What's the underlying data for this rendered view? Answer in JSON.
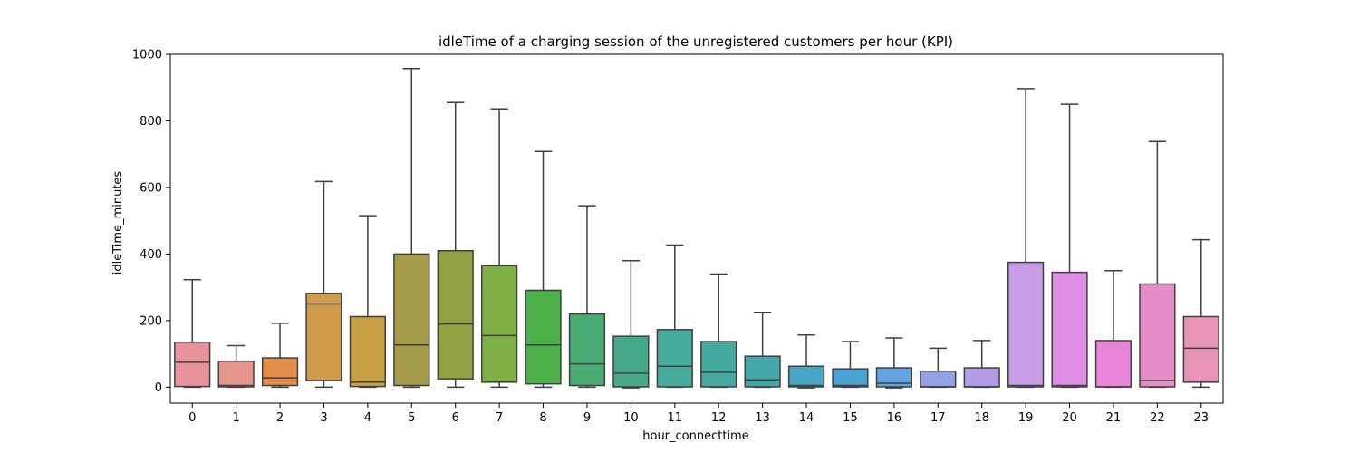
{
  "chart_data": {
    "type": "boxplot",
    "title": "idleTime of a charging session of the unregistered customers per hour (KPI)",
    "xlabel": "hour_connecttime",
    "ylabel": "idleTime_minutes",
    "ylim": [
      -48,
      1000
    ],
    "yticks": [
      0,
      200,
      400,
      600,
      800,
      1000
    ],
    "grid": false,
    "categories": [
      "0",
      "1",
      "2",
      "3",
      "4",
      "5",
      "6",
      "7",
      "8",
      "9",
      "10",
      "11",
      "12",
      "13",
      "14",
      "15",
      "16",
      "17",
      "18",
      "19",
      "20",
      "21",
      "22",
      "23"
    ],
    "boxes": [
      {
        "whisker_low": 0,
        "q1": 2,
        "median": 75,
        "q3": 135,
        "whisker_high": 323,
        "color": "#e8939b"
      },
      {
        "whisker_low": 0,
        "q1": 1,
        "median": 5,
        "q3": 78,
        "whisker_high": 125,
        "color": "#e7968b"
      },
      {
        "whisker_low": 0,
        "q1": 5,
        "median": 28,
        "q3": 88,
        "whisker_high": 192,
        "color": "#e38d4b"
      },
      {
        "whisker_low": 0,
        "q1": 20,
        "median": 250,
        "q3": 282,
        "whisker_high": 618,
        "color": "#d09c4c"
      },
      {
        "whisker_low": 0,
        "q1": 2,
        "median": 15,
        "q3": 212,
        "whisker_high": 515,
        "color": "#c8a046"
      },
      {
        "whisker_low": 0,
        "q1": 5,
        "median": 127,
        "q3": 400,
        "whisker_high": 957,
        "color": "#a59d49"
      },
      {
        "whisker_low": 0,
        "q1": 25,
        "median": 190,
        "q3": 410,
        "whisker_high": 855,
        "color": "#92a343"
      },
      {
        "whisker_low": 0,
        "q1": 15,
        "median": 155,
        "q3": 365,
        "whisker_high": 836,
        "color": "#7fb045"
      },
      {
        "whisker_low": 0,
        "q1": 10,
        "median": 127,
        "q3": 291,
        "whisker_high": 708,
        "color": "#4db14a"
      },
      {
        "whisker_low": 0,
        "q1": 5,
        "median": 70,
        "q3": 220,
        "whisker_high": 545,
        "color": "#4aab74"
      },
      {
        "whisker_low": -2,
        "q1": 1,
        "median": 42,
        "q3": 153,
        "whisker_high": 380,
        "color": "#47a98b"
      },
      {
        "whisker_low": 0,
        "q1": 1,
        "median": 63,
        "q3": 173,
        "whisker_high": 427,
        "color": "#47ab9b"
      },
      {
        "whisker_low": 0,
        "q1": 1,
        "median": 45,
        "q3": 137,
        "whisker_high": 340,
        "color": "#45a99f"
      },
      {
        "whisker_low": 0,
        "q1": 1,
        "median": 22,
        "q3": 93,
        "whisker_high": 225,
        "color": "#46a7ab"
      },
      {
        "whisker_low": -2,
        "q1": 1,
        "median": 5,
        "q3": 63,
        "whisker_high": 157,
        "color": "#49a6c4"
      },
      {
        "whisker_low": 0,
        "q1": 1,
        "median": 5,
        "q3": 55,
        "whisker_high": 137,
        "color": "#4aa3d3"
      },
      {
        "whisker_low": -2,
        "q1": 1,
        "median": 12,
        "q3": 58,
        "whisker_high": 148,
        "color": "#62a5e1"
      },
      {
        "whisker_low": 0,
        "q1": 1,
        "median": 1,
        "q3": 48,
        "whisker_high": 117,
        "color": "#94a1e4"
      },
      {
        "whisker_low": 0,
        "q1": 1,
        "median": 1,
        "q3": 58,
        "whisker_high": 140,
        "color": "#b19de6"
      },
      {
        "whisker_low": 0,
        "q1": 1,
        "median": 5,
        "q3": 375,
        "whisker_high": 897,
        "color": "#c89de6"
      },
      {
        "whisker_low": 0,
        "q1": 1,
        "median": 5,
        "q3": 345,
        "whisker_high": 850,
        "color": "#df8ee6"
      },
      {
        "whisker_low": 0,
        "q1": 1,
        "median": 1,
        "q3": 140,
        "whisker_high": 350,
        "color": "#ea83da"
      },
      {
        "whisker_low": 0,
        "q1": 1,
        "median": 20,
        "q3": 310,
        "whisker_high": 738,
        "color": "#e68dc8"
      },
      {
        "whisker_low": 0,
        "q1": 15,
        "median": 117,
        "q3": 212,
        "whisker_high": 443,
        "color": "#e894b6"
      }
    ]
  }
}
